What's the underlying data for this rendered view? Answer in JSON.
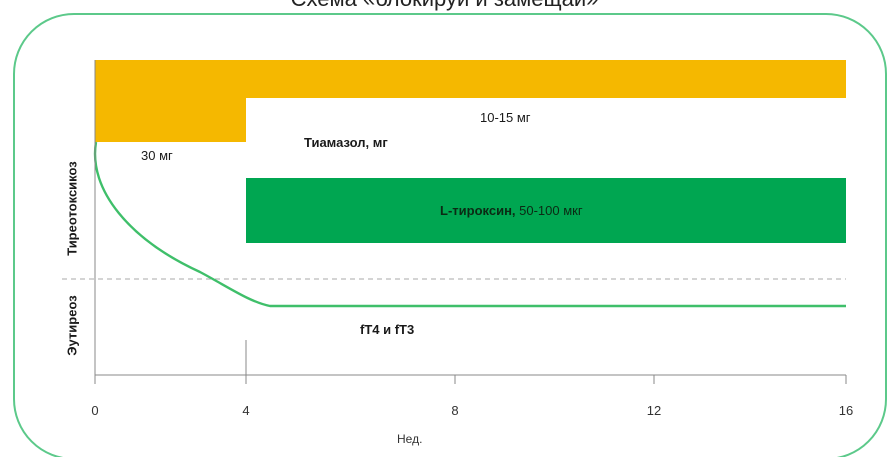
{
  "title": "Схема «блокируй и замещай»",
  "colors": {
    "frame": "#5cc98a",
    "thiamazole": "#f5b800",
    "levothyroxine": "#00a651",
    "curve": "#3fbf6a",
    "axis": "#888888",
    "divider": "#bbbbbb"
  },
  "labels": {
    "dose_30": "30 мг",
    "dose_10_15": "10-15 мг",
    "thiamazole": "Тиамазол, мг",
    "levothyroxine_name": "L-тироксин,",
    "levothyroxine_dose": " 50-100 мкг",
    "hormones": "fT4 и fT3",
    "thyrotoxicosis": "Тиреотоксикоз",
    "euthyroid": "Эутиреоз",
    "x_axis": "Нед."
  },
  "x_ticks": [
    "0",
    "4",
    "8",
    "12",
    "16"
  ]
}
